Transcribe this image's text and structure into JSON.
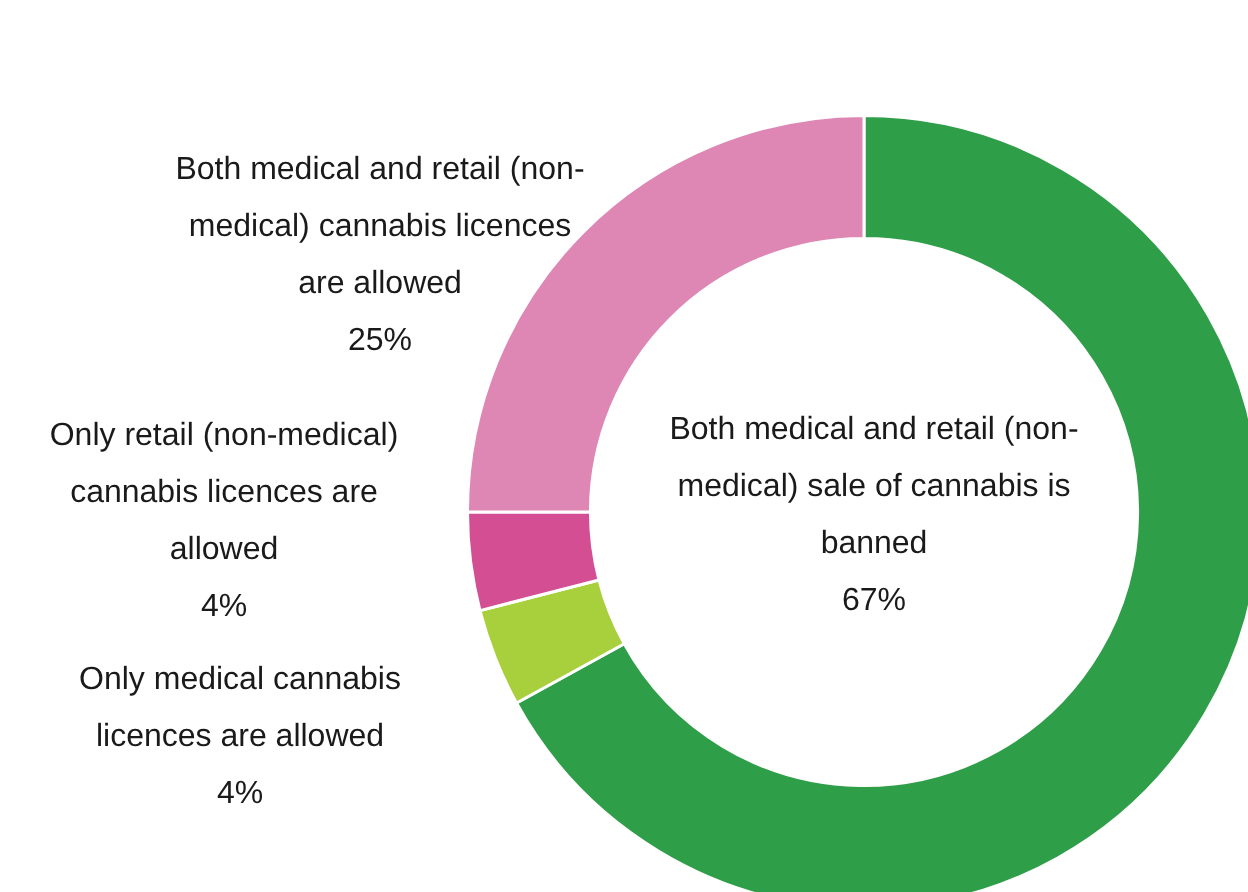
{
  "chart_data": {
    "type": "donut",
    "categories": [
      "Both medical and retail (non-medical) sale of cannabis is banned",
      "Only medical cannabis licences are allowed",
      "Only retail (non-medical) cannabis licences are allowed",
      "Both medical and retail (non-medical) cannabis licences are allowed"
    ],
    "values": [
      67,
      4,
      4,
      25
    ],
    "value_labels": [
      "67%",
      "4%",
      "4%",
      "25%"
    ],
    "colors": [
      "#2e9e48",
      "#a8cf3c",
      "#d44e94",
      "#de86b4"
    ],
    "legend": false
  }
}
